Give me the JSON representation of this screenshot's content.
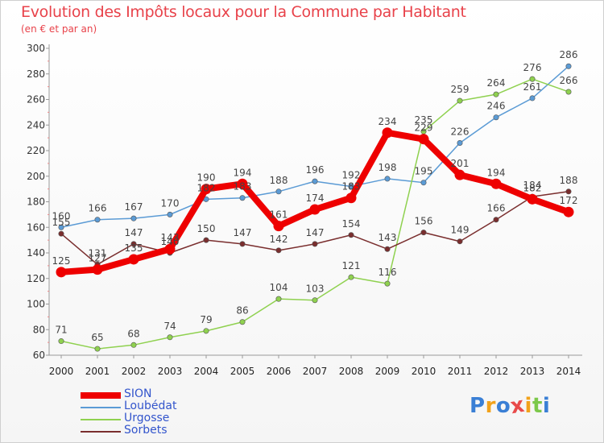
{
  "title": "Evolution des Impôts locaux pour la Commune par Habitant",
  "subtitle": "(en € et par an)",
  "brand": {
    "letters": [
      "P",
      "r",
      "o",
      "x",
      "i",
      "t",
      "i"
    ],
    "colors": [
      "#3a7fd5",
      "#f2a21b",
      "#3a7fd5",
      "#e84a4a",
      "#f2a21b",
      "#7cc84a",
      "#3a7fd5"
    ]
  },
  "chart_data": {
    "type": "line",
    "categories": [
      "2000",
      "2001",
      "2002",
      "2003",
      "2004",
      "2005",
      "2006",
      "2007",
      "2008",
      "2009",
      "2010",
      "2011",
      "2012",
      "2013",
      "2014"
    ],
    "ylim": [
      60,
      300
    ],
    "yticks": [
      60,
      80,
      100,
      120,
      140,
      160,
      180,
      200,
      220,
      240,
      260,
      280,
      300
    ],
    "grid": false,
    "legend_position": "bottom-left",
    "series": [
      {
        "name": "Loubédat",
        "color": "#5b9bd5",
        "values": [
          160,
          166,
          167,
          170,
          182,
          183,
          188,
          196,
          192,
          198,
          195,
          226,
          246,
          261,
          286
        ]
      },
      {
        "name": "Urgosse",
        "color": "#8fd14f",
        "values": [
          71,
          65,
          68,
          74,
          79,
          86,
          104,
          103,
          121,
          116,
          235,
          259,
          264,
          276,
          266
        ]
      },
      {
        "name": "Sorbets",
        "color": "#7a2e2e",
        "values": [
          155,
          131,
          147,
          140,
          150,
          147,
          142,
          147,
          154,
          143,
          156,
          149,
          166,
          184,
          188
        ]
      },
      {
        "name": "SION",
        "color": "#ee0000",
        "values": [
          125,
          127,
          135,
          143,
          190,
          194,
          161,
          174,
          183,
          234,
          229,
          201,
          194,
          182,
          172
        ]
      }
    ]
  }
}
